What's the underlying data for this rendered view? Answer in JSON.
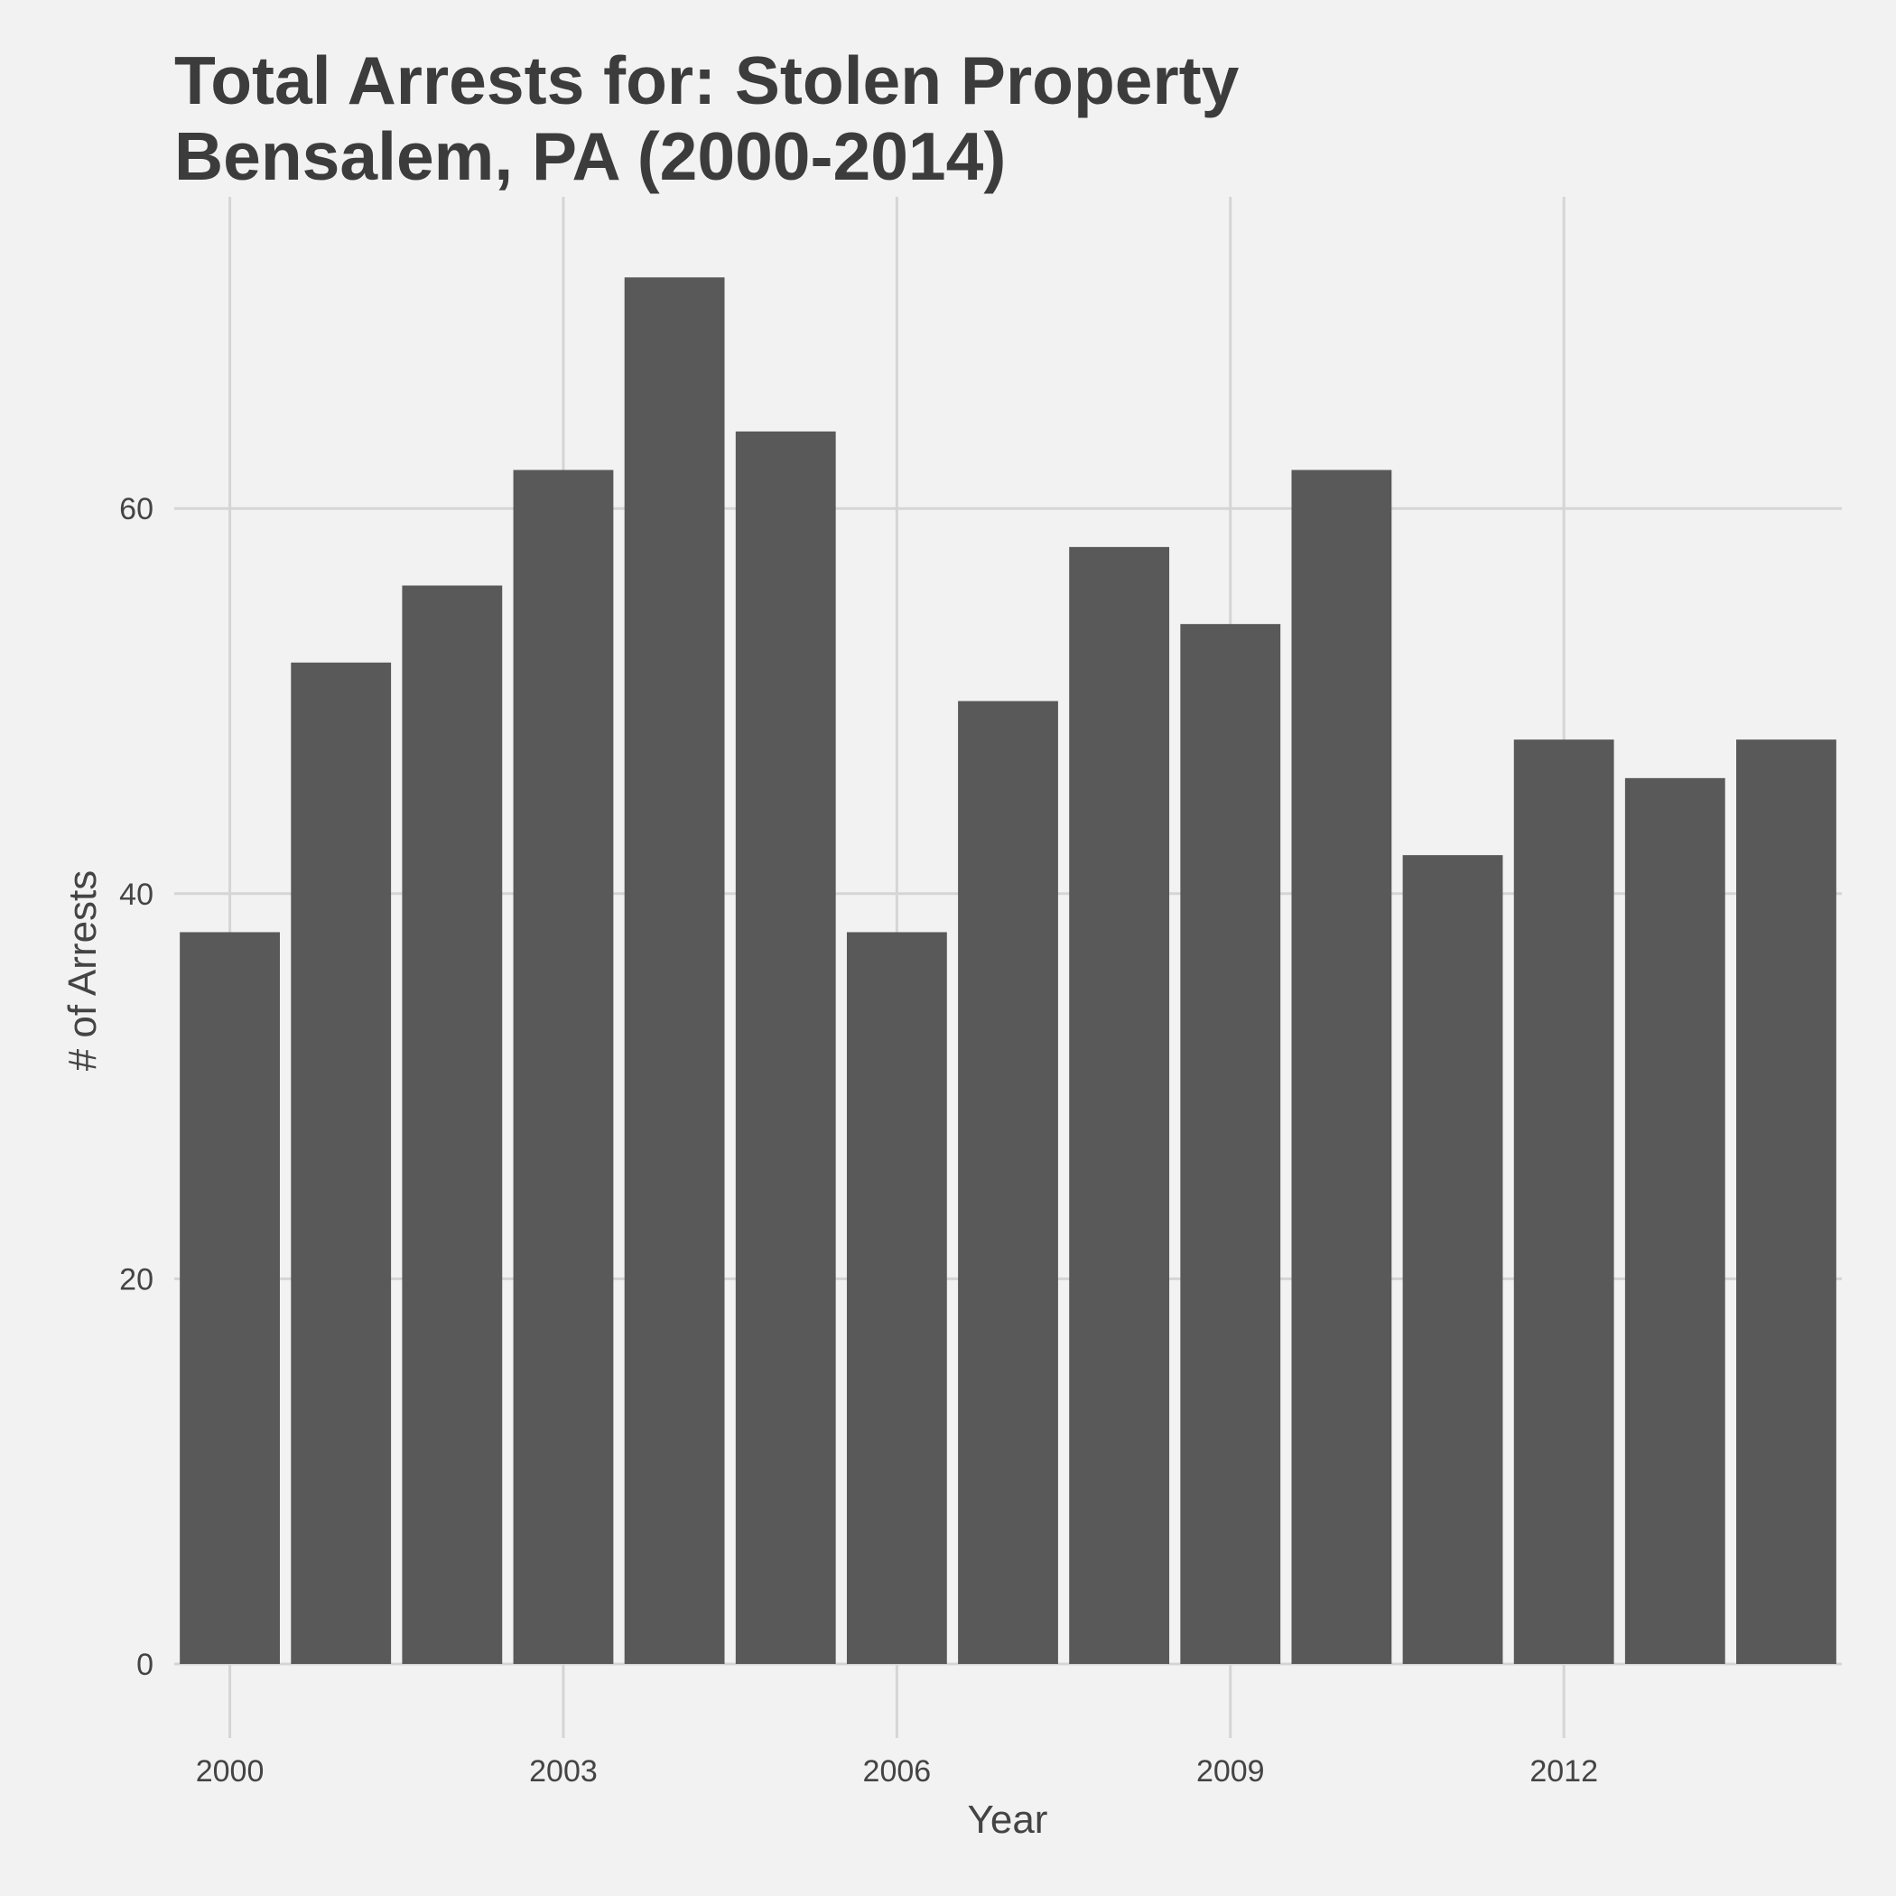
{
  "chart_data": {
    "type": "bar",
    "title": "Total Arrests for: Stolen Property",
    "subtitle": "Bensalem, PA (2000-2014)",
    "xlabel": "Year",
    "ylabel": "# of Arrests",
    "categories": [
      2000,
      2001,
      2002,
      2003,
      2004,
      2005,
      2006,
      2007,
      2008,
      2009,
      2010,
      2011,
      2012,
      2013,
      2014
    ],
    "values": [
      38,
      52,
      56,
      62,
      72,
      64,
      38,
      50,
      58,
      54,
      62,
      42,
      48,
      46,
      48
    ],
    "xticks": [
      2000,
      2003,
      2006,
      2009,
      2012
    ],
    "yticks": [
      0,
      20,
      40,
      60
    ],
    "ylim": [
      0,
      72
    ],
    "bar_color": "#595959",
    "background_color": "#f2f2f2",
    "grid_color": "#d5d5d5",
    "grid": true,
    "legend": "none"
  }
}
